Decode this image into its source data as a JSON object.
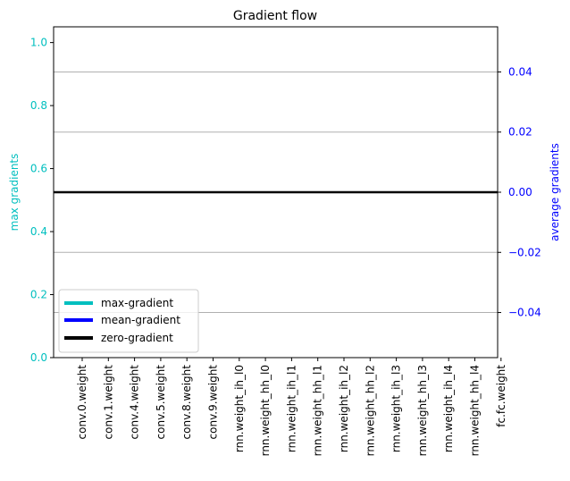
{
  "chart_data": {
    "type": "bar",
    "title": "Gradient flow",
    "categories": [
      "conv.0.weight",
      "conv.1.weight",
      "conv.4.weight",
      "conv.5.weight",
      "conv.8.weight",
      "conv.9.weight",
      "rnn.weight_ih_l0",
      "rnn.weight_hh_l0",
      "rnn.weight_ih_l1",
      "rnn.weight_hh_l1",
      "rnn.weight_ih_l2",
      "rnn.weight_hh_l2",
      "rnn.weight_ih_l3",
      "rnn.weight_hh_l3",
      "rnn.weight_ih_l4",
      "rnn.weight_hh_l4",
      "fc.fc.weight"
    ],
    "series": [
      {
        "name": "max-gradient",
        "axis": "left",
        "color": "#00bfbf",
        "values": [
          0,
          0,
          0,
          0,
          0,
          0,
          0,
          0,
          0,
          0,
          0,
          0,
          0,
          0,
          0,
          0,
          0
        ]
      },
      {
        "name": "mean-gradient",
        "axis": "right",
        "color": "#0000ff",
        "values": [
          0,
          0,
          0,
          0,
          0,
          0,
          0,
          0,
          0,
          0,
          0,
          0,
          0,
          0,
          0,
          0,
          0
        ]
      }
    ],
    "zero_line": {
      "name": "zero-gradient",
      "value": 0.0,
      "color": "#000000"
    },
    "ylabel_left": "max gradients",
    "ylabel_right": "average gradients",
    "ylim_left": [
      0,
      1.05
    ],
    "ylim_right": [
      -0.055,
      0.055
    ],
    "yticks_left": [
      "0.0",
      "0.2",
      "0.4",
      "0.6",
      "0.8",
      "1.0"
    ],
    "yticks_right": [
      "−0.04",
      "−0.02",
      "0.00",
      "0.02",
      "0.04"
    ],
    "yticks_right_values": [
      -0.04,
      -0.02,
      0.0,
      0.02,
      0.04
    ],
    "yticks_left_values": [
      0,
      0.2,
      0.4,
      0.6,
      0.8,
      1.0
    ],
    "grid": "horizontal-right-axis",
    "legend_position": "lower-left",
    "left_axis_color": "#00bfbf",
    "right_axis_color": "#0000ff"
  }
}
